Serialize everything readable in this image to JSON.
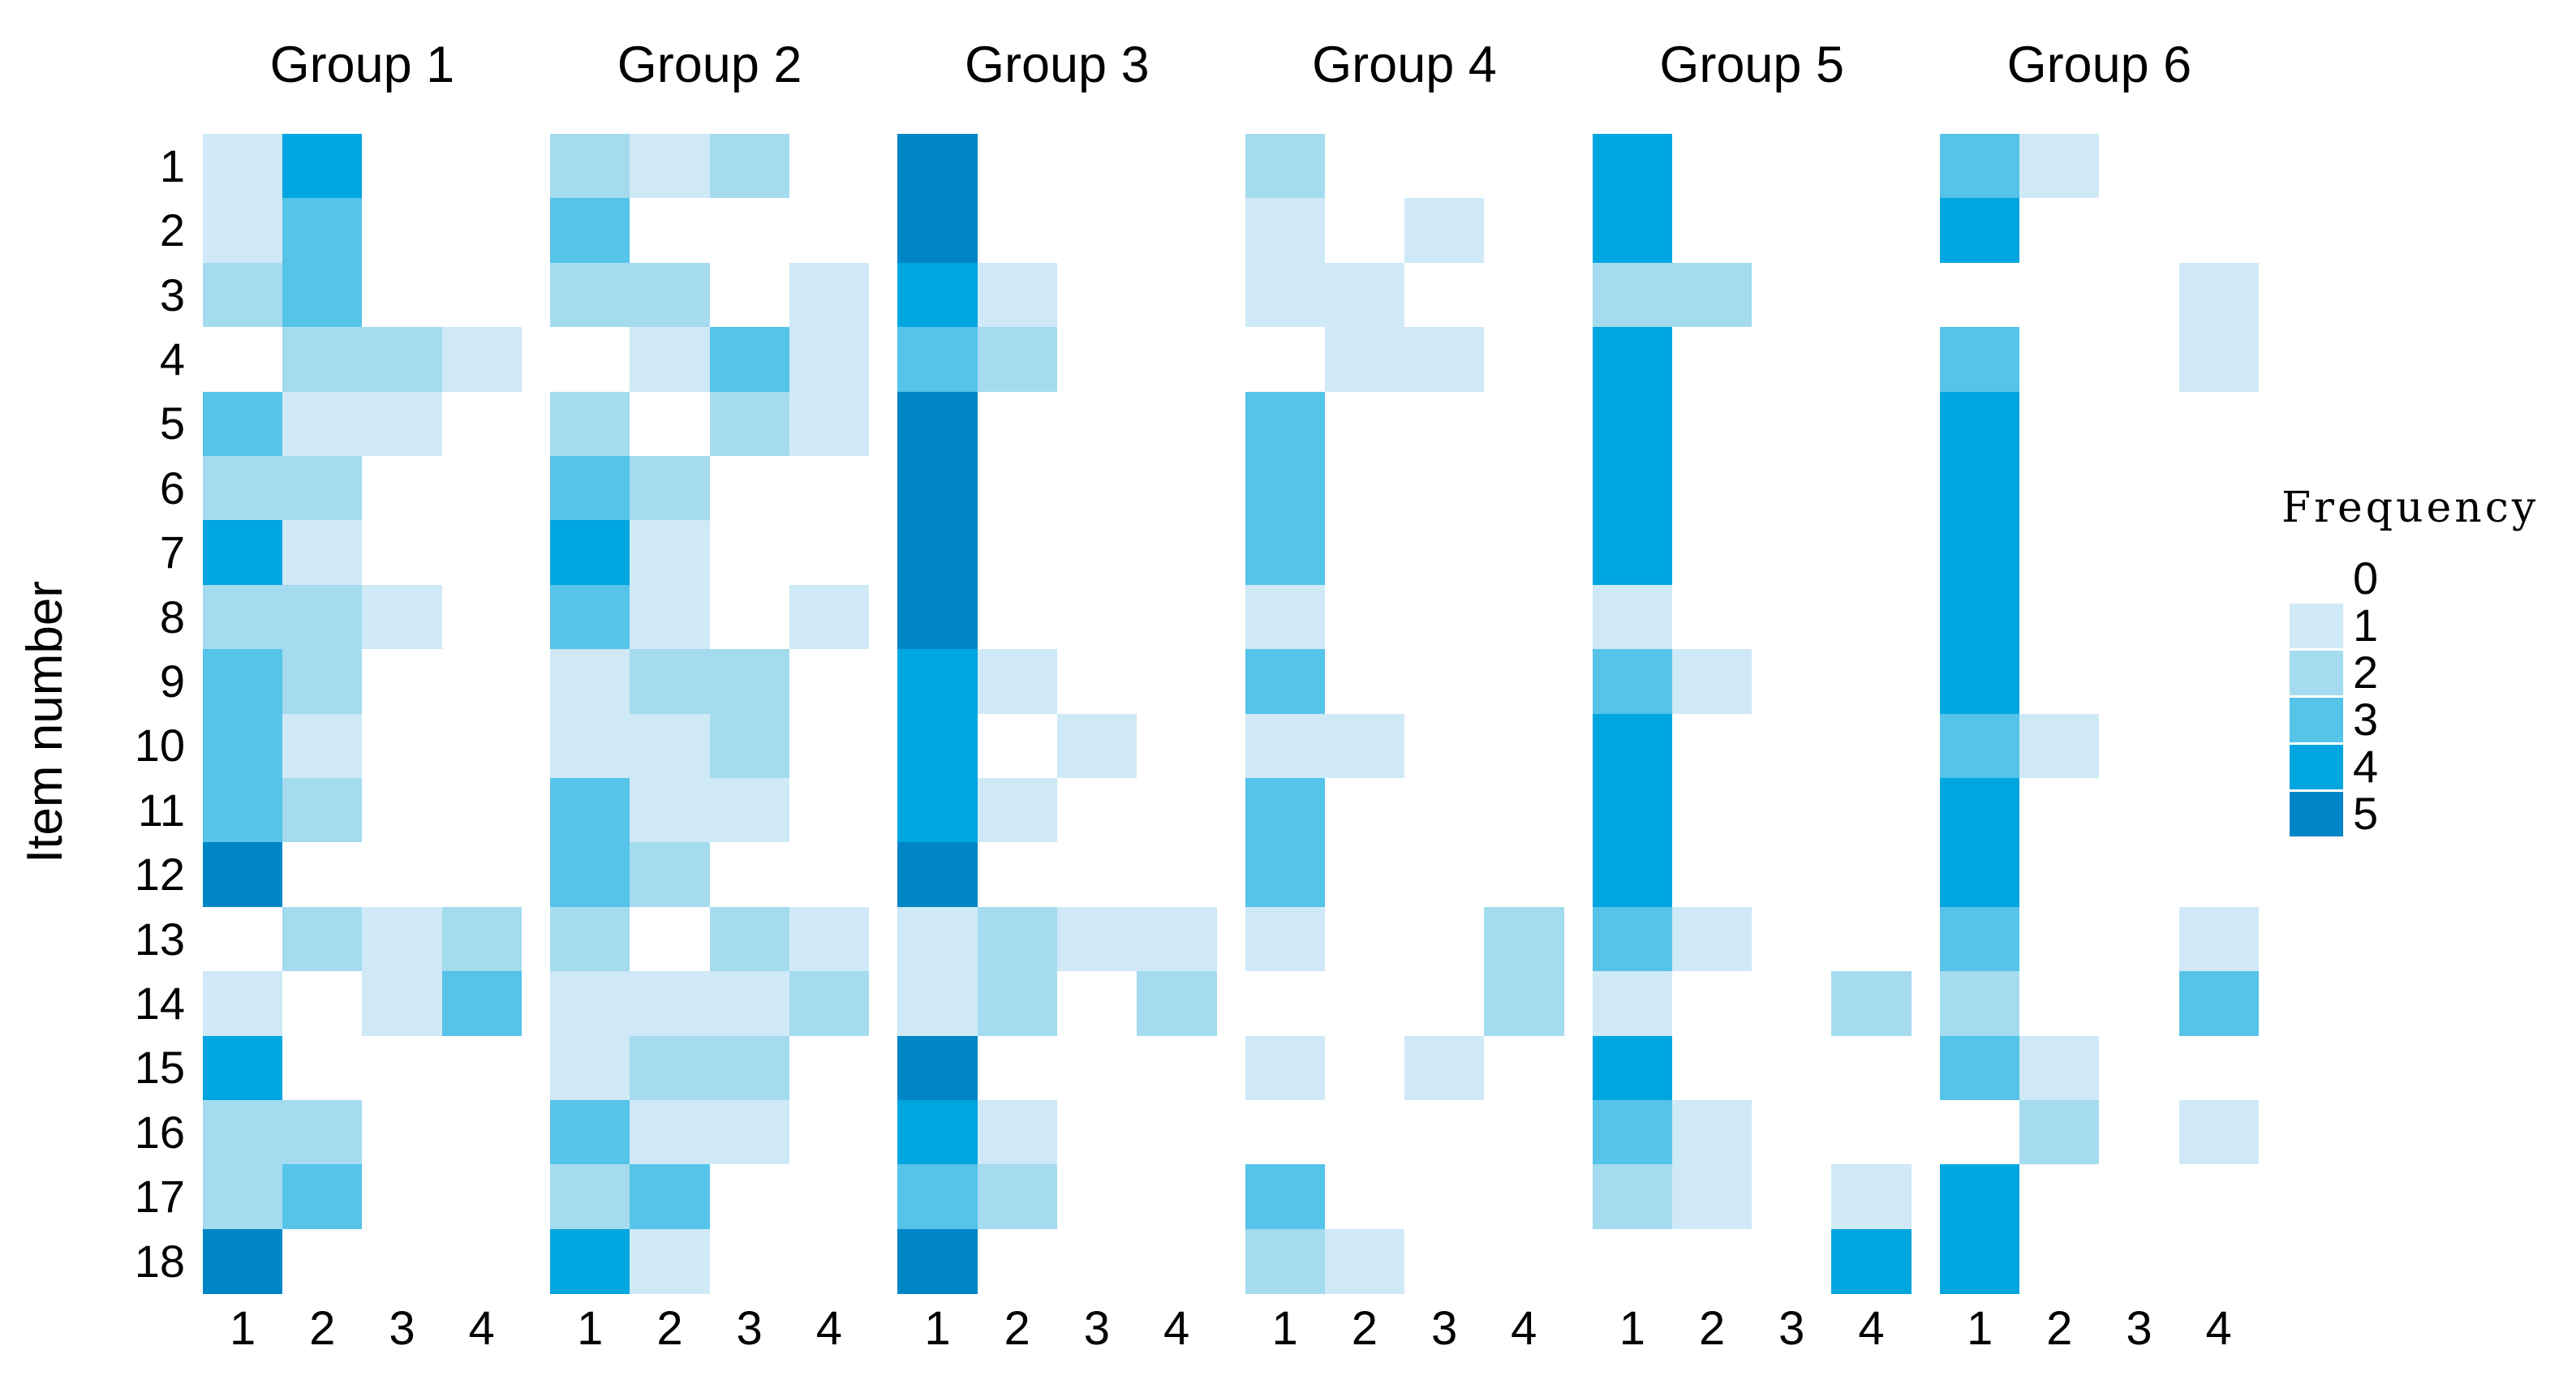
{
  "chart_data": {
    "type": "heatmap",
    "ylabel": "Item number",
    "row_labels": [
      "1",
      "2",
      "3",
      "4",
      "5",
      "6",
      "7",
      "8",
      "9",
      "10",
      "11",
      "12",
      "13",
      "14",
      "15",
      "16",
      "17",
      "18"
    ],
    "col_labels": [
      "1",
      "2",
      "3",
      "4"
    ],
    "value_range": [
      0,
      5
    ],
    "palette": [
      "#ffffff",
      "#cfe9f6",
      "#a4dbef",
      "#56c3e9",
      "#00a6e0",
      "#0086c6"
    ],
    "legend": {
      "title": "Frequency",
      "position": "right",
      "values": [
        "0",
        "1",
        "2",
        "3",
        "4",
        "5"
      ],
      "colors": [
        "#ffffff",
        "#cfe9f6",
        "#a4dbef",
        "#56c3e9",
        "#00a6e0",
        "#0086c6"
      ]
    },
    "groups": [
      {
        "name": "Group 1",
        "values": [
          [
            1,
            4,
            0,
            0
          ],
          [
            1,
            3,
            0,
            0
          ],
          [
            2,
            3,
            0,
            0
          ],
          [
            0,
            2,
            2,
            1
          ],
          [
            3,
            1,
            1,
            0
          ],
          [
            2,
            2,
            0,
            0
          ],
          [
            4,
            1,
            0,
            0
          ],
          [
            2,
            2,
            1,
            0
          ],
          [
            3,
            2,
            0,
            0
          ],
          [
            3,
            1,
            0,
            0
          ],
          [
            3,
            2,
            0,
            0
          ],
          [
            5,
            0,
            0,
            0
          ],
          [
            0,
            2,
            1,
            2
          ],
          [
            1,
            0,
            1,
            3
          ],
          [
            4,
            0,
            0,
            0
          ],
          [
            2,
            2,
            0,
            0
          ],
          [
            2,
            3,
            0,
            0
          ],
          [
            5,
            0,
            0,
            0
          ]
        ]
      },
      {
        "name": "Group 2",
        "values": [
          [
            2,
            1,
            2,
            0
          ],
          [
            3,
            0,
            0,
            0
          ],
          [
            2,
            2,
            0,
            1
          ],
          [
            0,
            1,
            3,
            1
          ],
          [
            2,
            0,
            2,
            1
          ],
          [
            3,
            2,
            0,
            0
          ],
          [
            4,
            1,
            0,
            0
          ],
          [
            3,
            1,
            0,
            1
          ],
          [
            1,
            2,
            2,
            0
          ],
          [
            1,
            1,
            2,
            0
          ],
          [
            3,
            1,
            1,
            0
          ],
          [
            3,
            2,
            0,
            0
          ],
          [
            2,
            0,
            2,
            1
          ],
          [
            1,
            1,
            1,
            2
          ],
          [
            1,
            2,
            2,
            0
          ],
          [
            3,
            1,
            1,
            0
          ],
          [
            2,
            3,
            0,
            0
          ],
          [
            4,
            1,
            0,
            0
          ]
        ]
      },
      {
        "name": "Group 3",
        "values": [
          [
            5,
            0,
            0,
            0
          ],
          [
            5,
            0,
            0,
            0
          ],
          [
            4,
            1,
            0,
            0
          ],
          [
            3,
            2,
            0,
            0
          ],
          [
            5,
            0,
            0,
            0
          ],
          [
            5,
            0,
            0,
            0
          ],
          [
            5,
            0,
            0,
            0
          ],
          [
            5,
            0,
            0,
            0
          ],
          [
            4,
            1,
            0,
            0
          ],
          [
            4,
            0,
            1,
            0
          ],
          [
            4,
            1,
            0,
            0
          ],
          [
            5,
            0,
            0,
            0
          ],
          [
            1,
            2,
            1,
            1
          ],
          [
            1,
            2,
            0,
            2
          ],
          [
            5,
            0,
            0,
            0
          ],
          [
            4,
            1,
            0,
            0
          ],
          [
            3,
            2,
            0,
            0
          ],
          [
            5,
            0,
            0,
            0
          ]
        ]
      },
      {
        "name": "Group 4",
        "values": [
          [
            2,
            0,
            0,
            0
          ],
          [
            1,
            0,
            1,
            0
          ],
          [
            1,
            1,
            0,
            0
          ],
          [
            0,
            1,
            1,
            0
          ],
          [
            3,
            0,
            0,
            0
          ],
          [
            3,
            0,
            0,
            0
          ],
          [
            3,
            0,
            0,
            0
          ],
          [
            1,
            0,
            0,
            0
          ],
          [
            3,
            0,
            0,
            0
          ],
          [
            1,
            1,
            0,
            0
          ],
          [
            3,
            0,
            0,
            0
          ],
          [
            3,
            0,
            0,
            0
          ],
          [
            1,
            0,
            0,
            2
          ],
          [
            0,
            0,
            0,
            2
          ],
          [
            1,
            0,
            1,
            0
          ],
          [
            0,
            0,
            0,
            0
          ],
          [
            3,
            0,
            0,
            0
          ],
          [
            2,
            1,
            0,
            0
          ]
        ]
      },
      {
        "name": "Group 5",
        "values": [
          [
            4,
            0,
            0,
            0
          ],
          [
            4,
            0,
            0,
            0
          ],
          [
            2,
            2,
            0,
            0
          ],
          [
            4,
            0,
            0,
            0
          ],
          [
            4,
            0,
            0,
            0
          ],
          [
            4,
            0,
            0,
            0
          ],
          [
            4,
            0,
            0,
            0
          ],
          [
            1,
            0,
            0,
            0
          ],
          [
            3,
            1,
            0,
            0
          ],
          [
            4,
            0,
            0,
            0
          ],
          [
            4,
            0,
            0,
            0
          ],
          [
            4,
            0,
            0,
            0
          ],
          [
            3,
            1,
            0,
            0
          ],
          [
            1,
            0,
            0,
            2
          ],
          [
            4,
            0,
            0,
            0
          ],
          [
            3,
            1,
            0,
            0
          ],
          [
            2,
            1,
            0,
            1
          ],
          [
            0,
            0,
            0,
            4
          ]
        ]
      },
      {
        "name": "Group 6",
        "values": [
          [
            3,
            1,
            0,
            0
          ],
          [
            4,
            0,
            0,
            0
          ],
          [
            0,
            0,
            0,
            1
          ],
          [
            3,
            0,
            0,
            1
          ],
          [
            4,
            0,
            0,
            0
          ],
          [
            4,
            0,
            0,
            0
          ],
          [
            4,
            0,
            0,
            0
          ],
          [
            4,
            0,
            0,
            0
          ],
          [
            4,
            0,
            0,
            0
          ],
          [
            3,
            1,
            0,
            0
          ],
          [
            4,
            0,
            0,
            0
          ],
          [
            4,
            0,
            0,
            0
          ],
          [
            3,
            0,
            0,
            1
          ],
          [
            2,
            0,
            0,
            3
          ],
          [
            3,
            1,
            0,
            0
          ],
          [
            0,
            2,
            0,
            1
          ],
          [
            4,
            0,
            0,
            0
          ],
          [
            4,
            0,
            0,
            0
          ]
        ]
      }
    ]
  }
}
